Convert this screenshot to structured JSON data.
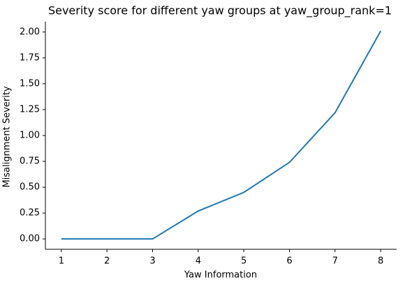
{
  "chart_data": {
    "type": "line",
    "title": "Severity score for different yaw groups at yaw_group_rank=1",
    "x_label": "Yaw Information",
    "y_label": "Misalignment Severity",
    "x": [
      1,
      2,
      3,
      4,
      5,
      6,
      7,
      8
    ],
    "series": [
      {
        "name": "Severity",
        "color": "#1f77b4",
        "values": [
          0,
          0,
          0,
          0.27,
          0.45,
          0.74,
          1.22,
          2.01
        ]
      }
    ],
    "xlim": [
      0.65,
      8.35
    ],
    "ylim": [
      -0.1,
      2.1
    ],
    "xticks": [
      1,
      2,
      3,
      4,
      5,
      6,
      7,
      8
    ],
    "yticks": [
      {
        "value": 0,
        "label": "0.00"
      },
      {
        "value": 0.25,
        "label": "0.25"
      },
      {
        "value": 0.5,
        "label": "0.50"
      },
      {
        "value": 0.75,
        "label": "0.75"
      },
      {
        "value": 1,
        "label": "1.00"
      },
      {
        "value": 1.25,
        "label": "1.25"
      },
      {
        "value": 1.5,
        "label": "1.50"
      },
      {
        "value": 1.75,
        "label": "1.75"
      },
      {
        "value": 2,
        "label": "2.00"
      }
    ]
  }
}
